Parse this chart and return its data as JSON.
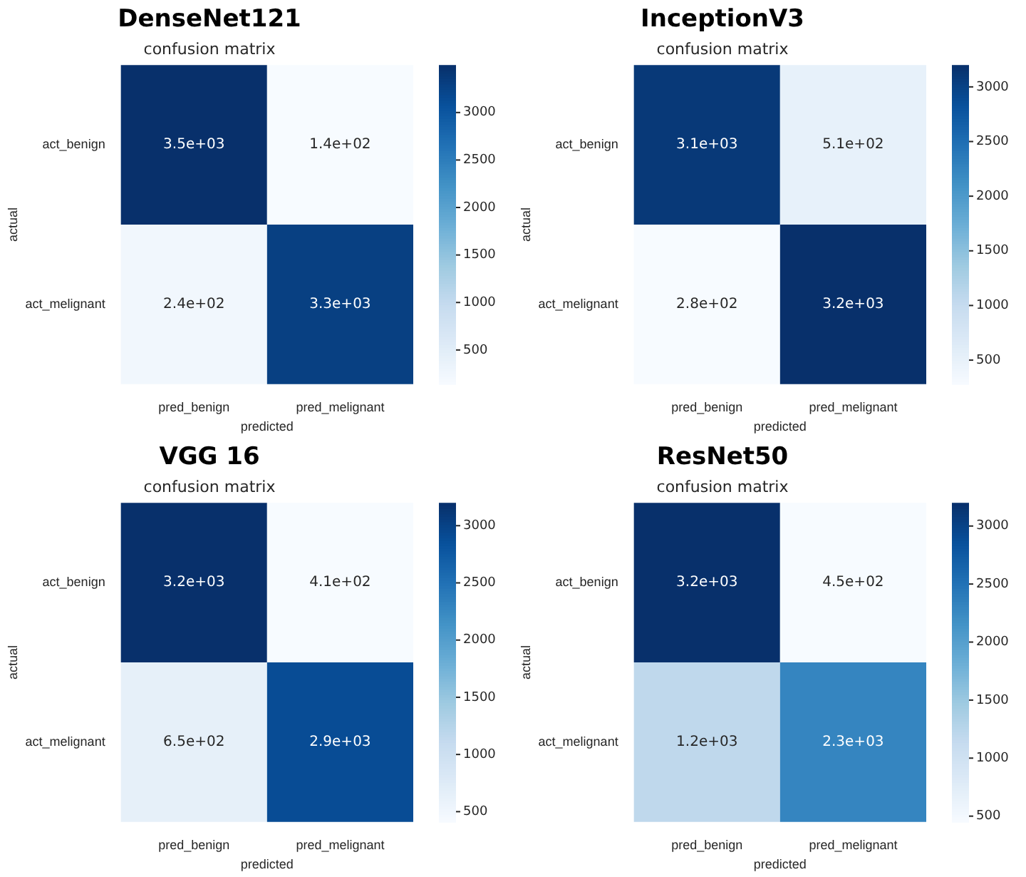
{
  "chart_data": [
    {
      "type": "heatmap",
      "title": "DenseNet121",
      "subtitle": "confusion matrix",
      "xlabel": "predicted",
      "ylabel": "actual",
      "categories": [
        "pred_benign",
        "pred_melignant"
      ],
      "y_categories": [
        "act_benign",
        "act_melignant"
      ],
      "cells": [
        [
          3500,
          140
        ],
        [
          240,
          3300
        ]
      ],
      "cell_labels": [
        [
          "3.5e+03",
          "1.4e+02"
        ],
        [
          "2.4e+02",
          "3.3e+03"
        ]
      ],
      "clim": [
        140,
        3500
      ],
      "cticks": [
        500,
        1000,
        1500,
        2000,
        2500,
        3000
      ]
    },
    {
      "type": "heatmap",
      "title": "InceptionV3",
      "subtitle": "confusion matrix",
      "xlabel": "predicted",
      "ylabel": "actual",
      "categories": [
        "pred_benign",
        "pred_melignant"
      ],
      "y_categories": [
        "act_benign",
        "act_melignant"
      ],
      "cells": [
        [
          3100,
          510
        ],
        [
          280,
          3200
        ]
      ],
      "cell_labels": [
        [
          "3.1e+03",
          "5.1e+02"
        ],
        [
          "2.8e+02",
          "3.2e+03"
        ]
      ],
      "clim": [
        280,
        3200
      ],
      "cticks": [
        500,
        1000,
        1500,
        2000,
        2500,
        3000
      ]
    },
    {
      "type": "heatmap",
      "title": "VGG 16",
      "subtitle": "confusion matrix",
      "xlabel": "predicted",
      "ylabel": "actual",
      "categories": [
        "pred_benign",
        "pred_melignant"
      ],
      "y_categories": [
        "act_benign",
        "act_melignant"
      ],
      "cells": [
        [
          3200,
          410
        ],
        [
          650,
          2900
        ]
      ],
      "cell_labels": [
        [
          "3.2e+03",
          "4.1e+02"
        ],
        [
          "6.5e+02",
          "2.9e+03"
        ]
      ],
      "clim": [
        410,
        3200
      ],
      "cticks": [
        500,
        1000,
        1500,
        2000,
        2500,
        3000
      ]
    },
    {
      "type": "heatmap",
      "title": "ResNet50",
      "subtitle": "confusion matrix",
      "xlabel": "predicted",
      "ylabel": "actual",
      "categories": [
        "pred_benign",
        "pred_melignant"
      ],
      "y_categories": [
        "act_benign",
        "act_melignant"
      ],
      "cells": [
        [
          3200,
          450
        ],
        [
          1200,
          2300
        ]
      ],
      "cell_labels": [
        [
          "3.2e+03",
          "4.5e+02"
        ],
        [
          "1.2e+03",
          "2.3e+03"
        ]
      ],
      "clim": [
        450,
        3200
      ],
      "cticks": [
        500,
        1000,
        1500,
        2000,
        2500,
        3000
      ]
    }
  ]
}
